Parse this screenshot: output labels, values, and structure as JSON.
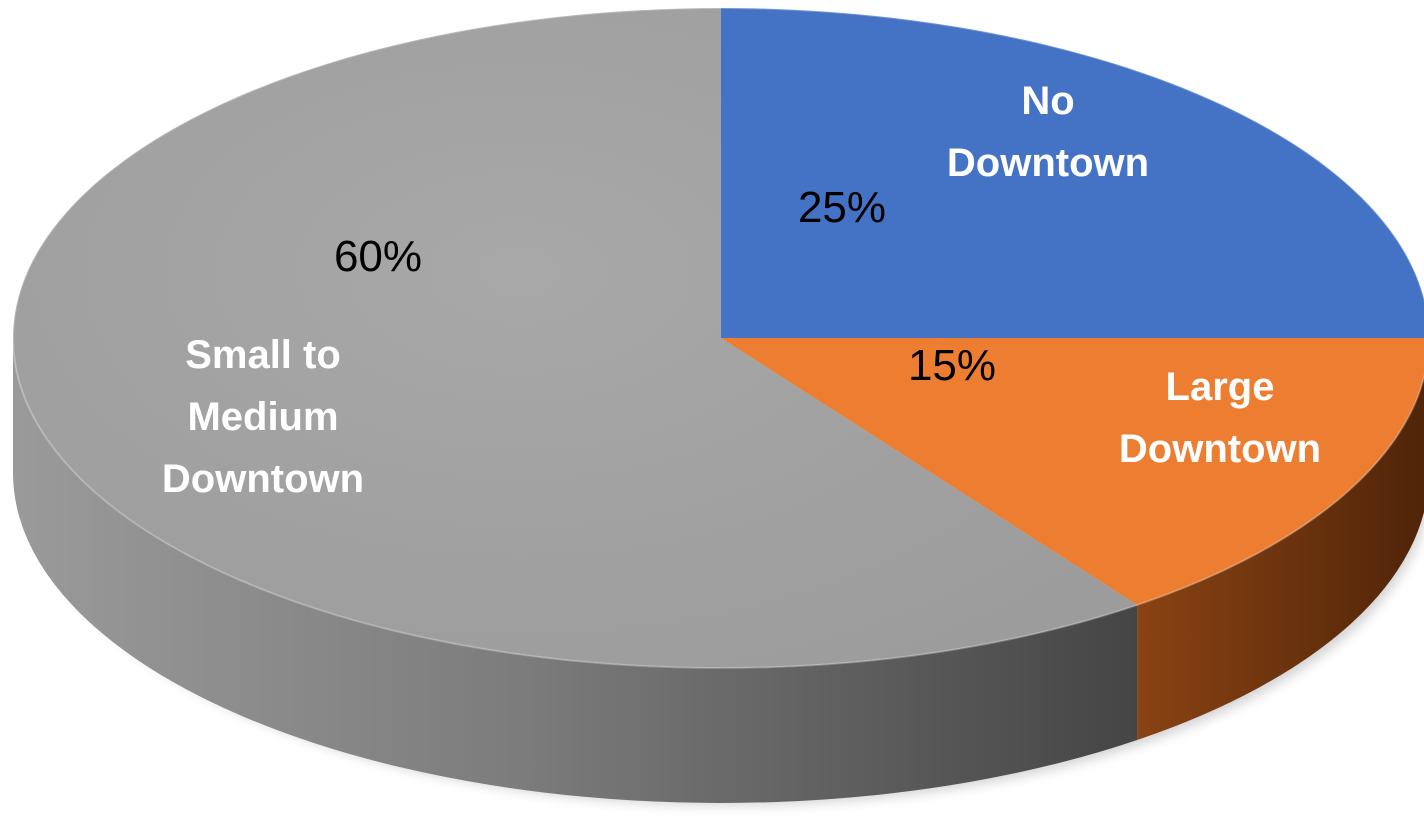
{
  "chart_data": {
    "type": "pie",
    "style": "3d",
    "slices": [
      {
        "name": "No Downtown",
        "value": 25,
        "label": "25%",
        "label_lines": [
          "No",
          "Downtown"
        ],
        "color": "#4472c4",
        "side_color": "#2f4f8a"
      },
      {
        "name": "Large Downtown",
        "value": 15,
        "label": "15%",
        "label_lines": [
          "Large",
          "Downtown"
        ],
        "color": "#ed7d31",
        "side_color": "#7a3a12"
      },
      {
        "name": "Small to Medium Downtown",
        "value": 60,
        "label": "60%",
        "label_lines": [
          "Small to",
          "Medium",
          "Downtown"
        ],
        "color": "#a5a5a5",
        "side_color": "#6e6e6e"
      }
    ],
    "legend": "none",
    "title": ""
  }
}
